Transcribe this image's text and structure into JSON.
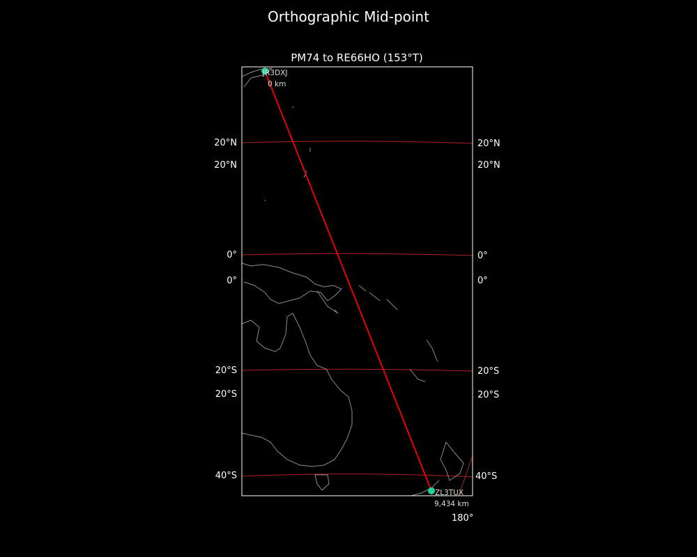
{
  "figure_title": "Orthographic Mid-point",
  "map": {
    "projection": "orthographic",
    "title": "PM74 to RE66HO (153°T)",
    "graticule_labels_left": [
      "20°N",
      "20°N",
      "0°",
      "0°",
      "20°S",
      "20°S",
      "40°S"
    ],
    "graticule_labels_right": [
      "20°N",
      "20°N",
      "0°",
      "0°",
      "20°S",
      "20°S",
      "40°S"
    ],
    "bottom_label": "180°",
    "colors": {
      "background": "#000000",
      "coastline": "#8c8c8c",
      "graticule": "#b22222",
      "path": "#ff0000",
      "station": "#20d4a0"
    },
    "start": {
      "call": "JR3DXJ",
      "distance": "0 km"
    },
    "end": {
      "call": "ZL3TUX",
      "distance": "9,434 km"
    }
  }
}
